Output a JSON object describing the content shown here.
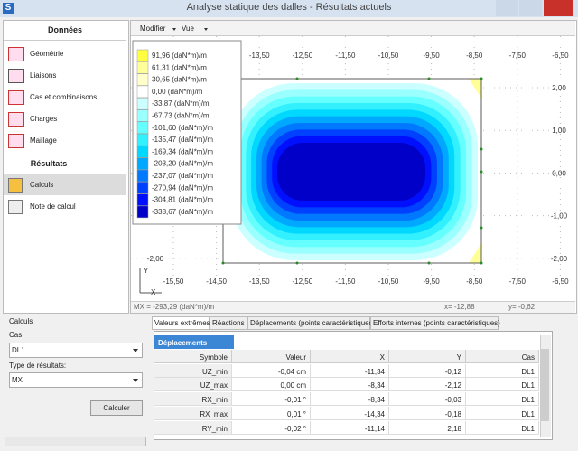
{
  "window": {
    "title": "Analyse statique des dalles - Résultats actuels"
  },
  "sidebar": {
    "data_header": "Données",
    "data_items": [
      "Géométrie",
      "Liaisons",
      "Cas et combinaisons",
      "Charges",
      "Maillage"
    ],
    "results_header": "Résultats",
    "results_items": [
      "Calculs",
      "Note de calcul"
    ]
  },
  "toolbar": {
    "menus": [
      "Modifier",
      "Vue"
    ]
  },
  "map": {
    "legend": [
      {
        "label": "91,96 (daN*m)/m",
        "color": "#ffff40"
      },
      {
        "label": "61,31 (daN*m)/m",
        "color": "#ffff99"
      },
      {
        "label": "30,65 (daN*m)/m",
        "color": "#ffffcc"
      },
      {
        "label": "0,00 (daN*m)/m",
        "color": "#ffffff"
      },
      {
        "label": "-33,87 (daN*m)/m",
        "color": "#ccffff"
      },
      {
        "label": "-67,73 (daN*m)/m",
        "color": "#99ffff"
      },
      {
        "label": "-101,60 (daN*m)/m",
        "color": "#66ffff"
      },
      {
        "label": "-135,47 (daN*m)/m",
        "color": "#33f0ff"
      },
      {
        "label": "-169,34 (daN*m)/m",
        "color": "#00d8ff"
      },
      {
        "label": "-203,20 (daN*m)/m",
        "color": "#00a8ff"
      },
      {
        "label": "-237,07 (daN*m)/m",
        "color": "#0078ff"
      },
      {
        "label": "-270,94 (daN*m)/m",
        "color": "#0040ff"
      },
      {
        "label": "-304,81 (daN*m)/m",
        "color": "#0010ff"
      },
      {
        "label": "-338,67 (daN*m)/m",
        "color": "#0000c8"
      }
    ],
    "top_ticks": [
      "-13,50",
      "-12,50",
      "-11,50",
      "-10,50",
      "-9,50",
      "-8,50",
      "-7,50",
      "-6,50"
    ],
    "bottom_ticks": [
      "-15,50",
      "-14,50",
      "-13,50",
      "-12,50",
      "-11,50",
      "-10,50",
      "-9,50",
      "-8,50",
      "-7,50",
      "-6,50"
    ],
    "right_ticks": [
      "2,00",
      "1,00",
      "0,00",
      "-1,00",
      "-2,00"
    ],
    "left_ticks": [
      "-2,00"
    ],
    "axis_y": "Y",
    "axis_x": "X",
    "status": {
      "value": "MX = -293,29 (daN*m)/m",
      "x": "x= -12,88",
      "y": "y= -0,62"
    }
  },
  "controls": {
    "title": "Calculs",
    "case_label": "Cas:",
    "case": "DL1",
    "type_label": "Type de résultats:",
    "type": "MX",
    "button": "Calculer"
  },
  "tabs": [
    "Valeurs extrêmes",
    "Réactions",
    "Déplacements (points caractéristiques)",
    "Efforts internes (points caractéristiques)"
  ],
  "table": {
    "title": "Déplacements",
    "columns": [
      "Symbole",
      "Valeur",
      "X",
      "Y",
      "Cas"
    ],
    "rows": [
      [
        "UZ_min",
        "-0,04 cm",
        "-11,34",
        "-0,12",
        "DL1"
      ],
      [
        "UZ_max",
        "0,00 cm",
        "-8,34",
        "-2,12",
        "DL1"
      ],
      [
        "RX_min",
        "-0,01 °",
        "-8,34",
        "-0,03",
        "DL1"
      ],
      [
        "RX_max",
        "0,01 °",
        "-14,34",
        "-0,18",
        "DL1"
      ],
      [
        "RY_min",
        "-0,02 °",
        "-11,14",
        "2,18",
        "DL1"
      ]
    ]
  }
}
